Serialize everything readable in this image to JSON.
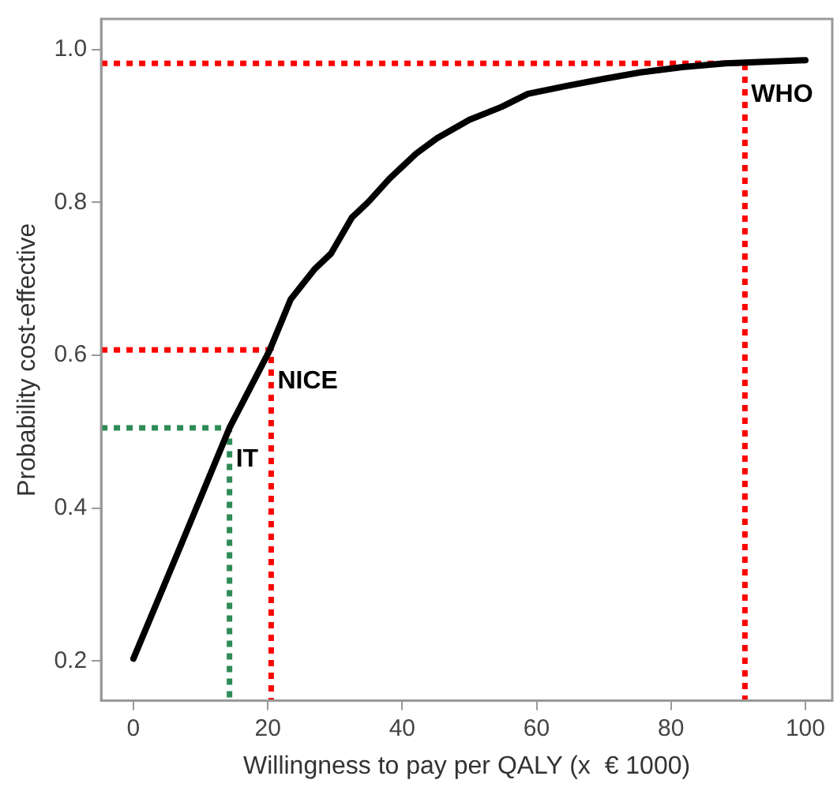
{
  "chart_data": {
    "type": "line",
    "xlabel": "Willingness to pay per QALY (x  € 1000)",
    "ylabel": "Probability cost-effective",
    "xlim": [
      -4.8,
      104
    ],
    "ylim": [
      0.148,
      1.04
    ],
    "xticks": [
      0,
      20,
      40,
      60,
      80,
      100
    ],
    "yticks": [
      0.2,
      0.4,
      0.6,
      0.8,
      {
        "value": 1,
        "label": "1.0"
      }
    ],
    "grid": false,
    "legend": false,
    "marker": "none",
    "series": [
      {
        "color": "#000000",
        "x": [
          0,
          7,
          14.3,
          20.2,
          23.4,
          27.0,
          29.4,
          32.5,
          34.9,
          38.1,
          42.1,
          45.2,
          50.0,
          54.8,
          58.7,
          64.3,
          69.0,
          75.4,
          81.7,
          88.1,
          100
        ],
        "values": [
          0.203,
          0.35,
          0.505,
          0.605,
          0.673,
          0.713,
          0.733,
          0.78,
          0.8,
          0.831,
          0.864,
          0.884,
          0.908,
          0.925,
          0.942,
          0.952,
          0.96,
          0.97,
          0.977,
          0.982,
          0.986
        ]
      },
      {
        "type": "line",
        "line_style": "dotted",
        "color": "#ff0000",
        "x": [
          -4.8,
          91,
          91
        ],
        "values": [
          0.982,
          0.982,
          0.148
        ]
      },
      {
        "type": "line",
        "line_style": "dotted",
        "color": "#ff0000",
        "x": [
          -4.8,
          20.5,
          20.5
        ],
        "values": [
          0.607,
          0.607,
          0.148
        ]
      },
      {
        "type": "line",
        "line_style": "dotted",
        "color": "#2e8b57",
        "x": [
          -4.8,
          14.3,
          14.3
        ],
        "values": [
          0.505,
          0.505,
          0.148
        ]
      }
    ],
    "annotations": [
      {
        "text": "WHO",
        "x": 91,
        "y": 0.982
      },
      {
        "text": "NICE",
        "x": 20.5,
        "y": 0.607
      },
      {
        "text": "IT",
        "x": 14.3,
        "y": 0.505
      }
    ]
  }
}
